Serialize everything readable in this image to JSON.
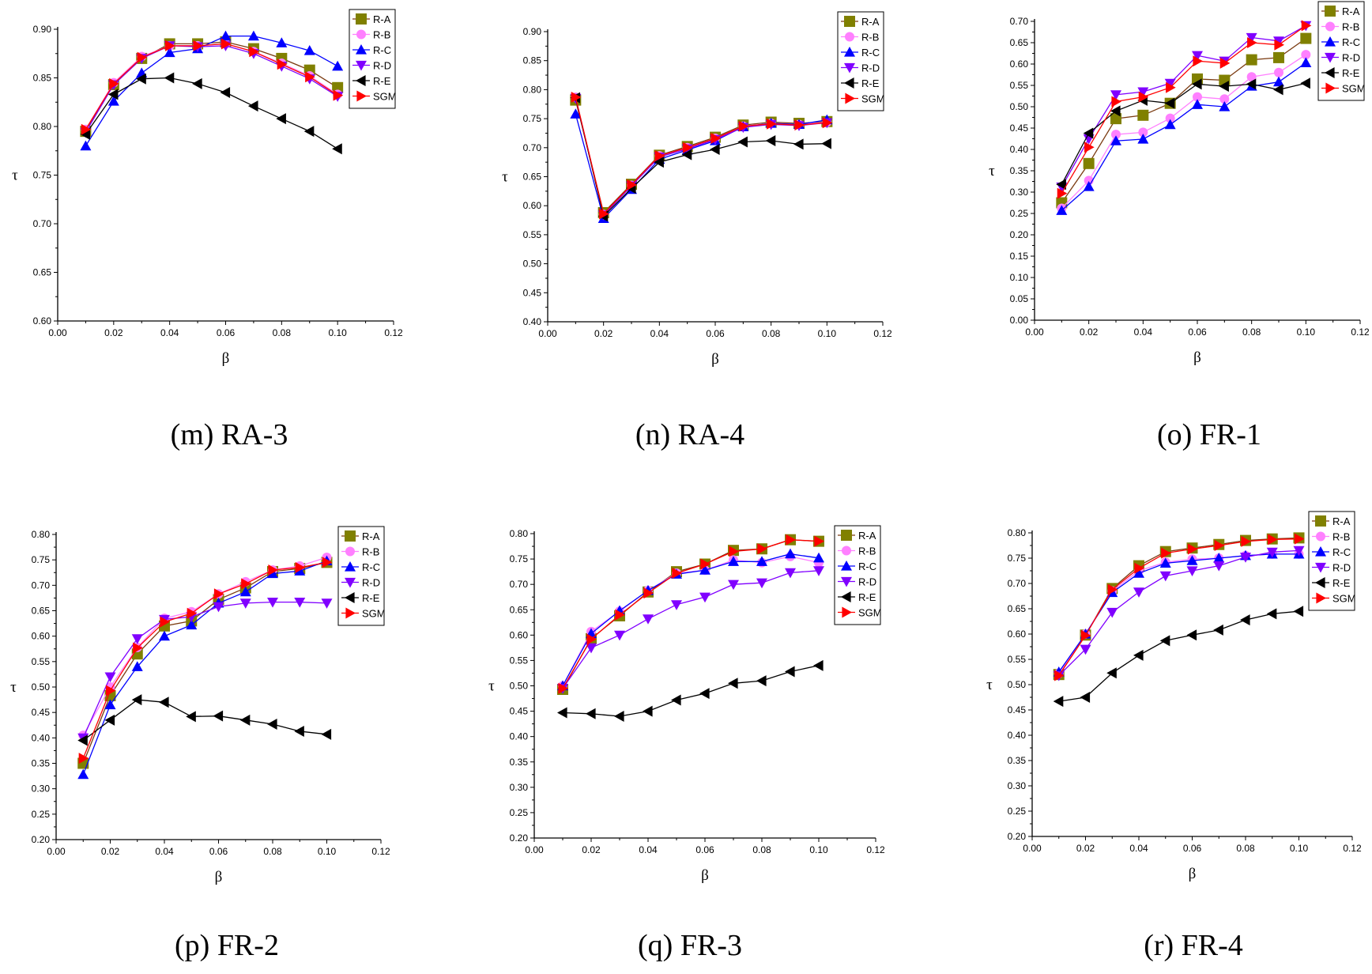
{
  "legend_order": [
    "R-A",
    "R-B",
    "R-C",
    "R-D",
    "R-E",
    "SGM"
  ],
  "series_style": {
    "R-A": {
      "color": "#808000",
      "line": "#7a3a10",
      "marker": "square"
    },
    "R-B": {
      "color": "#ff80ff",
      "line": "#ff80ff",
      "marker": "circle"
    },
    "R-C": {
      "color": "#0000ff",
      "line": "#0000ff",
      "marker": "triangle-up"
    },
    "R-D": {
      "color": "#8000ff",
      "line": "#8000ff",
      "marker": "triangle-down"
    },
    "R-E": {
      "color": "#000000",
      "line": "#000000",
      "marker": "triangle-left"
    },
    "SGM": {
      "color": "#ff0000",
      "line": "#ff0000",
      "marker": "triangle-right"
    }
  },
  "chart_data": [
    {
      "type": "line",
      "caption": "(m) RA-3",
      "xlabel": "β",
      "ylabel": "τ",
      "xlim": [
        0,
        0.12
      ],
      "ylim": [
        0.6,
        0.9
      ],
      "ystep": 0.05,
      "x": [
        0.01,
        0.02,
        0.03,
        0.04,
        0.05,
        0.06,
        0.07,
        0.08,
        0.09,
        0.1
      ],
      "series": [
        {
          "name": "R-A",
          "values": [
            0.795,
            0.843,
            0.87,
            0.885,
            0.885,
            0.887,
            0.88,
            0.87,
            0.858,
            0.84
          ]
        },
        {
          "name": "R-B",
          "values": [
            0.797,
            0.845,
            0.872,
            0.883,
            0.883,
            0.885,
            0.877,
            0.865,
            0.852,
            0.833
          ]
        },
        {
          "name": "R-C",
          "values": [
            0.78,
            0.826,
            0.855,
            0.876,
            0.88,
            0.893,
            0.893,
            0.886,
            0.878,
            0.862
          ]
        },
        {
          "name": "R-D",
          "values": [
            0.794,
            0.843,
            0.87,
            0.883,
            0.882,
            0.883,
            0.875,
            0.862,
            0.849,
            0.831
          ]
        },
        {
          "name": "R-E",
          "values": [
            0.792,
            0.833,
            0.849,
            0.85,
            0.844,
            0.835,
            0.821,
            0.808,
            0.795,
            0.777
          ]
        },
        {
          "name": "SGM",
          "values": [
            0.797,
            0.844,
            0.871,
            0.883,
            0.883,
            0.885,
            0.877,
            0.864,
            0.851,
            0.832
          ]
        }
      ]
    },
    {
      "type": "line",
      "caption": "(n) RA-4",
      "xlabel": "β",
      "ylabel": "τ",
      "xlim": [
        0,
        0.12
      ],
      "ylim": [
        0.4,
        0.9
      ],
      "ystep": 0.05,
      "x": [
        0.01,
        0.02,
        0.03,
        0.04,
        0.05,
        0.06,
        0.07,
        0.08,
        0.09,
        0.1
      ],
      "series": [
        {
          "name": "R-A",
          "values": [
            0.782,
            0.588,
            0.637,
            0.687,
            0.702,
            0.718,
            0.739,
            0.744,
            0.742,
            0.745
          ]
        },
        {
          "name": "R-B",
          "values": [
            0.787,
            0.585,
            0.635,
            0.686,
            0.7,
            0.716,
            0.737,
            0.742,
            0.74,
            0.744
          ]
        },
        {
          "name": "R-C",
          "values": [
            0.758,
            0.578,
            0.628,
            0.68,
            0.696,
            0.712,
            0.736,
            0.742,
            0.74,
            0.748
          ]
        },
        {
          "name": "R-D",
          "values": [
            0.785,
            0.584,
            0.634,
            0.684,
            0.698,
            0.714,
            0.735,
            0.74,
            0.738,
            0.743
          ]
        },
        {
          "name": "R-E",
          "values": [
            0.786,
            0.582,
            0.63,
            0.675,
            0.688,
            0.697,
            0.71,
            0.712,
            0.706,
            0.707
          ]
        },
        {
          "name": "SGM",
          "values": [
            0.787,
            0.586,
            0.636,
            0.686,
            0.7,
            0.716,
            0.737,
            0.741,
            0.739,
            0.743
          ]
        }
      ]
    },
    {
      "type": "line",
      "caption": "(o) FR-1",
      "xlabel": "β",
      "ylabel": "τ",
      "xlim": [
        0,
        0.12
      ],
      "ylim": [
        0.0,
        0.7
      ],
      "ystep": 0.05,
      "x": [
        0.01,
        0.02,
        0.03,
        0.04,
        0.05,
        0.06,
        0.07,
        0.08,
        0.09,
        0.1
      ],
      "series": [
        {
          "name": "R-A",
          "values": [
            0.275,
            0.367,
            0.472,
            0.48,
            0.508,
            0.565,
            0.562,
            0.61,
            0.615,
            0.66
          ]
        },
        {
          "name": "R-B",
          "values": [
            0.262,
            0.327,
            0.435,
            0.44,
            0.473,
            0.523,
            0.518,
            0.57,
            0.58,
            0.622
          ]
        },
        {
          "name": "R-C",
          "values": [
            0.257,
            0.313,
            0.42,
            0.424,
            0.458,
            0.505,
            0.5,
            0.548,
            0.558,
            0.603
          ]
        },
        {
          "name": "R-D",
          "values": [
            0.312,
            0.425,
            0.528,
            0.535,
            0.555,
            0.62,
            0.607,
            0.662,
            0.654,
            0.69
          ]
        },
        {
          "name": "R-E",
          "values": [
            0.318,
            0.438,
            0.49,
            0.515,
            0.508,
            0.553,
            0.548,
            0.553,
            0.54,
            0.555
          ]
        },
        {
          "name": "SGM",
          "values": [
            0.297,
            0.405,
            0.512,
            0.523,
            0.545,
            0.607,
            0.602,
            0.65,
            0.645,
            0.69
          ]
        }
      ]
    },
    {
      "type": "line",
      "caption": "(p) FR-2",
      "xlabel": "β",
      "ylabel": "τ",
      "xlim": [
        0,
        0.12
      ],
      "ylim": [
        0.2,
        0.8
      ],
      "ystep": 0.05,
      "x": [
        0.01,
        0.02,
        0.03,
        0.04,
        0.05,
        0.06,
        0.07,
        0.08,
        0.09,
        0.1
      ],
      "series": [
        {
          "name": "R-A",
          "values": [
            0.35,
            0.483,
            0.565,
            0.62,
            0.63,
            0.672,
            0.695,
            0.727,
            0.733,
            0.745
          ]
        },
        {
          "name": "R-B",
          "values": [
            0.405,
            0.5,
            0.578,
            0.635,
            0.648,
            0.683,
            0.707,
            0.73,
            0.738,
            0.755
          ]
        },
        {
          "name": "R-C",
          "values": [
            0.328,
            0.465,
            0.54,
            0.6,
            0.622,
            0.665,
            0.687,
            0.723,
            0.728,
            0.748
          ]
        },
        {
          "name": "R-D",
          "values": [
            0.4,
            0.52,
            0.595,
            0.633,
            0.638,
            0.658,
            0.665,
            0.667,
            0.667,
            0.665
          ]
        },
        {
          "name": "R-E",
          "values": [
            0.395,
            0.435,
            0.475,
            0.47,
            0.442,
            0.443,
            0.435,
            0.427,
            0.413,
            0.407
          ]
        },
        {
          "name": "SGM",
          "values": [
            0.36,
            0.493,
            0.577,
            0.628,
            0.645,
            0.683,
            0.703,
            0.73,
            0.735,
            0.745
          ]
        }
      ]
    },
    {
      "type": "line",
      "caption": "(q) FR-3",
      "xlabel": "β",
      "ylabel": "τ",
      "xlim": [
        0,
        0.12
      ],
      "ylim": [
        0.2,
        0.8
      ],
      "ystep": 0.05,
      "x": [
        0.01,
        0.02,
        0.03,
        0.04,
        0.05,
        0.06,
        0.07,
        0.08,
        0.09,
        0.1
      ],
      "series": [
        {
          "name": "R-A",
          "values": [
            0.493,
            0.593,
            0.638,
            0.685,
            0.725,
            0.74,
            0.767,
            0.77,
            0.788,
            0.785
          ]
        },
        {
          "name": "R-B",
          "values": [
            0.5,
            0.607,
            0.647,
            0.688,
            0.722,
            0.728,
            0.748,
            0.743,
            0.755,
            0.743
          ]
        },
        {
          "name": "R-C",
          "values": [
            0.5,
            0.603,
            0.648,
            0.688,
            0.72,
            0.728,
            0.745,
            0.745,
            0.76,
            0.752
          ]
        },
        {
          "name": "R-D",
          "values": [
            0.495,
            0.575,
            0.6,
            0.632,
            0.66,
            0.675,
            0.7,
            0.703,
            0.723,
            0.727
          ]
        },
        {
          "name": "R-E",
          "values": [
            0.447,
            0.445,
            0.44,
            0.45,
            0.472,
            0.485,
            0.505,
            0.51,
            0.528,
            0.54
          ]
        },
        {
          "name": "SGM",
          "values": [
            0.495,
            0.592,
            0.64,
            0.683,
            0.722,
            0.74,
            0.765,
            0.77,
            0.788,
            0.785
          ]
        }
      ]
    },
    {
      "type": "line",
      "caption": "(r) FR-4",
      "xlabel": "β",
      "ylabel": "τ",
      "xlim": [
        0,
        0.12
      ],
      "ylim": [
        0.2,
        0.8
      ],
      "ystep": 0.05,
      "x": [
        0.01,
        0.02,
        0.03,
        0.04,
        0.05,
        0.06,
        0.07,
        0.08,
        0.09,
        0.1
      ],
      "series": [
        {
          "name": "R-A",
          "values": [
            0.52,
            0.598,
            0.69,
            0.735,
            0.763,
            0.77,
            0.777,
            0.785,
            0.788,
            0.79
          ]
        },
        {
          "name": "R-B",
          "values": [
            0.522,
            0.6,
            0.685,
            0.725,
            0.742,
            0.748,
            0.75,
            0.755,
            0.758,
            0.758
          ]
        },
        {
          "name": "R-C",
          "values": [
            0.525,
            0.6,
            0.682,
            0.72,
            0.74,
            0.745,
            0.75,
            0.755,
            0.758,
            0.758
          ]
        },
        {
          "name": "R-D",
          "values": [
            0.518,
            0.57,
            0.643,
            0.683,
            0.715,
            0.725,
            0.735,
            0.752,
            0.762,
            0.765
          ]
        },
        {
          "name": "R-E",
          "values": [
            0.467,
            0.475,
            0.523,
            0.558,
            0.587,
            0.598,
            0.608,
            0.628,
            0.64,
            0.645
          ]
        },
        {
          "name": "SGM",
          "values": [
            0.518,
            0.597,
            0.688,
            0.73,
            0.76,
            0.768,
            0.775,
            0.783,
            0.787,
            0.788
          ]
        }
      ]
    }
  ]
}
